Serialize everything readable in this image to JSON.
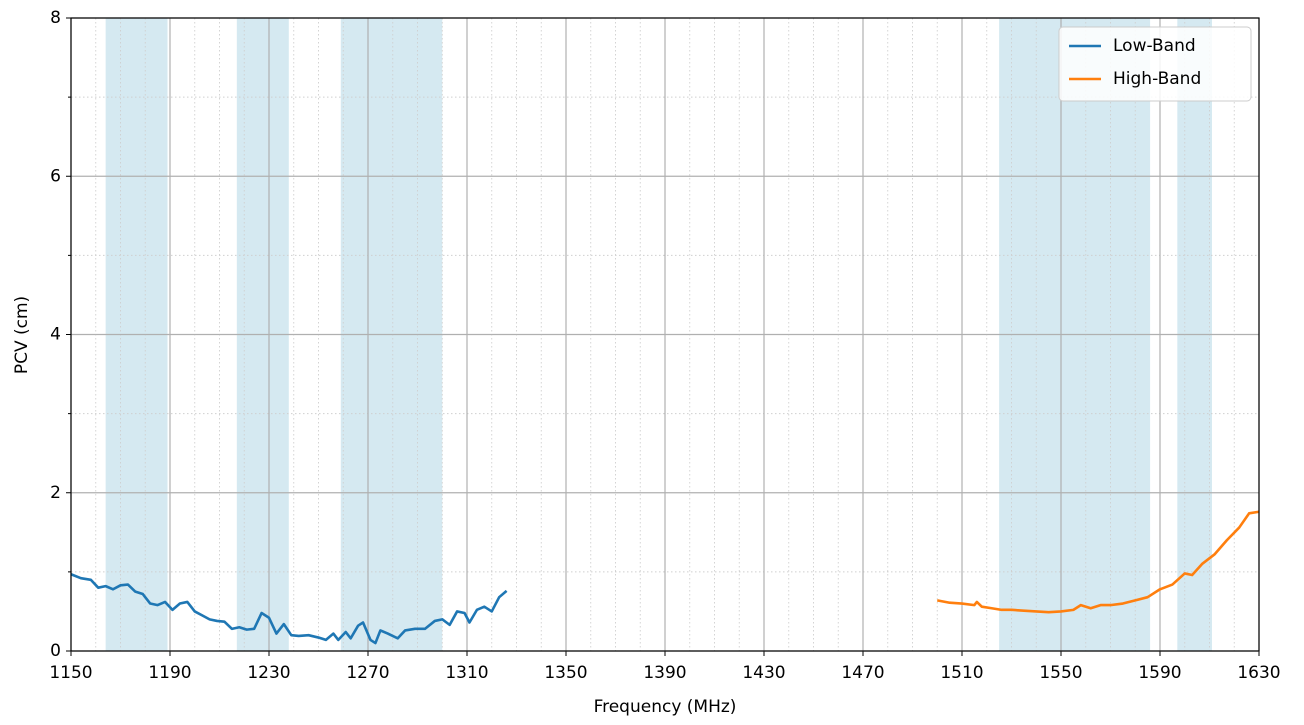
{
  "chart_data": {
    "type": "line",
    "xlabel": "Frequency (MHz)",
    "ylabel": "PCV (cm)",
    "xlim": [
      1150,
      1630
    ],
    "ylim": [
      0,
      8
    ],
    "xticks": [
      1150,
      1190,
      1230,
      1270,
      1310,
      1350,
      1390,
      1430,
      1470,
      1510,
      1550,
      1590,
      1630
    ],
    "yticks": [
      0,
      2,
      4,
      6,
      8
    ],
    "xminorticks": [
      1160,
      1170,
      1180,
      1200,
      1210,
      1220,
      1240,
      1250,
      1260,
      1280,
      1290,
      1300,
      1320,
      1330,
      1340,
      1360,
      1370,
      1380,
      1400,
      1410,
      1420,
      1440,
      1450,
      1460,
      1480,
      1490,
      1500,
      1520,
      1530,
      1540,
      1560,
      1570,
      1580,
      1600,
      1610,
      1620
    ],
    "yminorticks": [
      1,
      3,
      5,
      7
    ],
    "grid": true,
    "legend": "upper right",
    "shaded_regions": {
      "color": "#d5e9f1",
      "ranges": [
        [
          1164,
          1189
        ],
        [
          1217,
          1238
        ],
        [
          1259,
          1300
        ],
        [
          1525,
          1586
        ],
        [
          1597,
          1611
        ]
      ]
    },
    "series": [
      {
        "name": "Low-Band",
        "color": "#1f77b4",
        "x": [
          1150,
          1154,
          1158,
          1161,
          1164,
          1167,
          1170,
          1173,
          1176,
          1179,
          1182,
          1185,
          1188,
          1191,
          1194,
          1197,
          1200,
          1203,
          1206,
          1209,
          1212,
          1215,
          1218,
          1221,
          1224,
          1227,
          1230,
          1233,
          1236,
          1239,
          1242,
          1246,
          1250,
          1253,
          1256,
          1258,
          1261,
          1263,
          1266,
          1268,
          1271,
          1273,
          1275,
          1278,
          1282,
          1285,
          1289,
          1293,
          1297,
          1300,
          1303,
          1306,
          1309,
          1311,
          1314,
          1317,
          1320,
          1323,
          1326
        ],
        "values": [
          0.97,
          0.92,
          0.9,
          0.8,
          0.82,
          0.78,
          0.83,
          0.84,
          0.75,
          0.72,
          0.6,
          0.58,
          0.62,
          0.52,
          0.6,
          0.62,
          0.5,
          0.45,
          0.4,
          0.38,
          0.37,
          0.28,
          0.3,
          0.27,
          0.28,
          0.48,
          0.42,
          0.22,
          0.34,
          0.2,
          0.19,
          0.2,
          0.17,
          0.14,
          0.22,
          0.14,
          0.24,
          0.16,
          0.32,
          0.36,
          0.14,
          0.1,
          0.26,
          0.22,
          0.16,
          0.26,
          0.28,
          0.28,
          0.38,
          0.4,
          0.33,
          0.5,
          0.48,
          0.36,
          0.52,
          0.56,
          0.5,
          0.68,
          0.76
        ]
      },
      {
        "name": "High-Band",
        "color": "#ff7f0e",
        "x": [
          1500,
          1505,
          1510,
          1515,
          1516,
          1518,
          1522,
          1526,
          1530,
          1535,
          1540,
          1545,
          1550,
          1555,
          1558,
          1562,
          1566,
          1570,
          1575,
          1580,
          1585,
          1590,
          1595,
          1600,
          1603,
          1607,
          1612,
          1617,
          1622,
          1626,
          1630
        ],
        "values": [
          0.64,
          0.61,
          0.6,
          0.58,
          0.62,
          0.56,
          0.54,
          0.52,
          0.52,
          0.51,
          0.5,
          0.49,
          0.5,
          0.52,
          0.58,
          0.54,
          0.58,
          0.58,
          0.6,
          0.64,
          0.68,
          0.78,
          0.84,
          0.98,
          0.96,
          1.1,
          1.22,
          1.4,
          1.56,
          1.74,
          1.76
        ]
      }
    ]
  }
}
